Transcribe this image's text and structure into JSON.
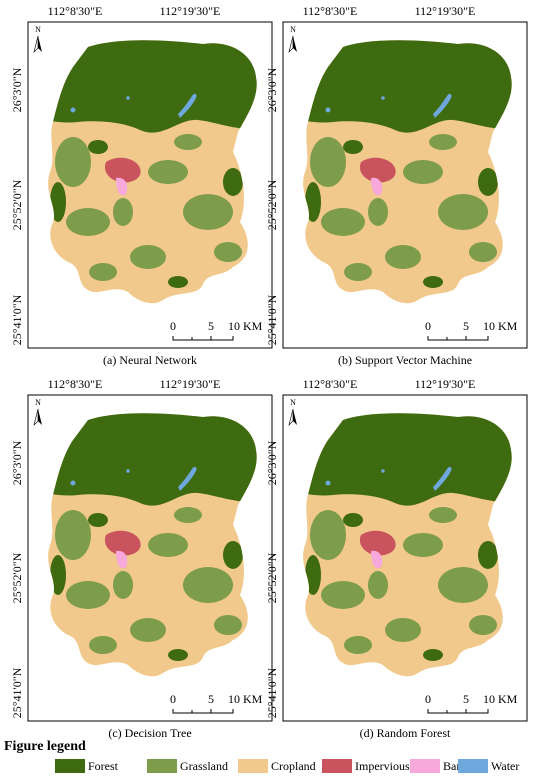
{
  "figure": {
    "lon_labels": [
      "112°8'30\"E",
      "112°19'30\"E"
    ],
    "lat_labels": [
      "26°3'0\"N",
      "25°52'0\"N",
      "25°41'0\"N"
    ],
    "north": "N",
    "scale_labels": [
      "0",
      "5",
      "10 KM"
    ],
    "panels": [
      {
        "caption": "(a) Neural Network"
      },
      {
        "caption": "(b) Support Vector Machine"
      },
      {
        "caption": "(c) Decision Tree"
      },
      {
        "caption": "(d) Random Forest"
      }
    ],
    "legend": {
      "title": "Figure legend",
      "items": [
        {
          "name": "Forest",
          "color": "#3e6a10"
        },
        {
          "name": "Grassland",
          "color": "#7d9c4c"
        },
        {
          "name": "Cropland",
          "color": "#f2c98c"
        },
        {
          "name": "Impervious",
          "color": "#c9545e"
        },
        {
          "name": "Barren",
          "color": "#f6a9da"
        },
        {
          "name": "Water",
          "color": "#6ea8dc"
        }
      ]
    }
  }
}
